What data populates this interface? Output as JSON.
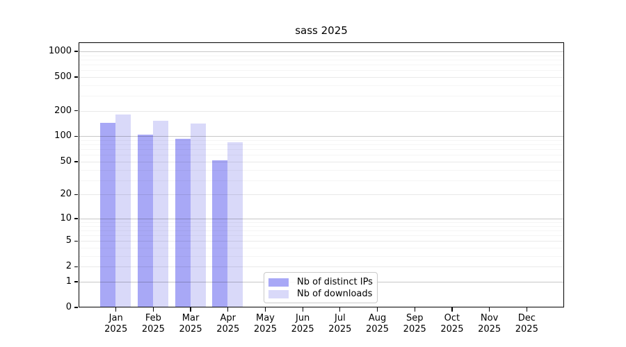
{
  "chart_data": {
    "type": "bar",
    "title": "sass 2025",
    "categories": [
      "Jan 2025",
      "Feb 2025",
      "Mar 2025",
      "Apr 2025",
      "May 2025",
      "Jun 2025",
      "Jul 2025",
      "Aug 2025",
      "Sep 2025",
      "Oct 2025",
      "Nov 2025",
      "Dec 2025"
    ],
    "series": [
      {
        "name": "Nb of distinct IPs",
        "color": "#a8a8f6",
        "values": [
          145,
          105,
          93,
          52,
          0,
          0,
          0,
          0,
          0,
          0,
          0,
          0
        ]
      },
      {
        "name": "Nb of downloads",
        "color": "#d9d9f9",
        "values": [
          180,
          153,
          141,
          85,
          0,
          0,
          0,
          0,
          0,
          0,
          0,
          0
        ]
      }
    ],
    "xlabel": "",
    "ylabel": "",
    "y_scale": "log1p",
    "y_ticks": [
      0,
      1,
      2,
      5,
      10,
      20,
      50,
      100,
      200,
      500,
      1000
    ],
    "y_decade_ticks": [
      1,
      10,
      100,
      1000
    ],
    "y_minor_multiples": [
      3,
      4,
      6,
      7,
      8,
      9
    ],
    "y_max": 1275,
    "grid": true,
    "legend_position": "lower-center"
  }
}
